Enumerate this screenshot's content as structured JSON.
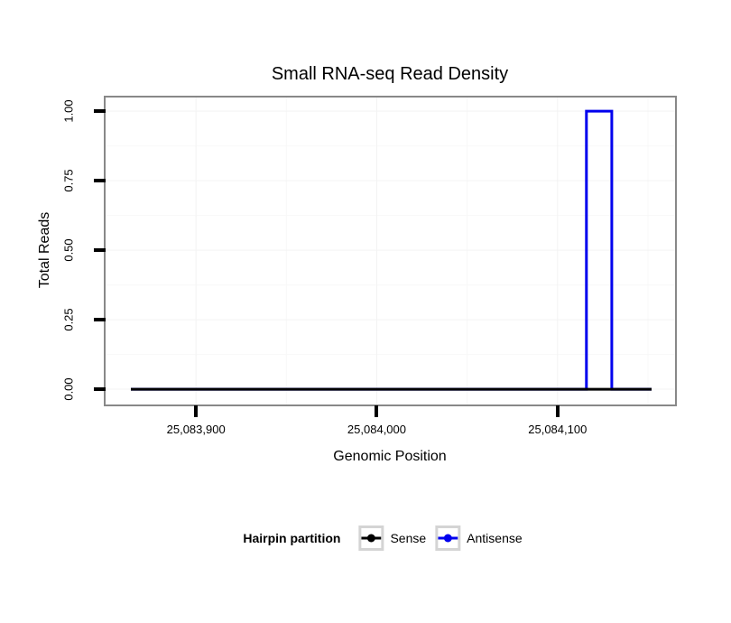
{
  "chart_data": {
    "type": "line",
    "title": "Small RNA-seq Read Density",
    "xlabel": "Genomic Position",
    "ylabel": "Total Reads",
    "legend_title": "Hairpin partition",
    "xlim": [
      25083850,
      25084165
    ],
    "ylim": [
      -0.055,
      1.049
    ],
    "x_ticks": [
      {
        "value": 25083900,
        "label": "25,083,900"
      },
      {
        "value": 25084000,
        "label": "25,084,000"
      },
      {
        "value": 25084100,
        "label": "25,084,100"
      }
    ],
    "y_ticks": [
      {
        "value": 0.0,
        "label": "0.00"
      },
      {
        "value": 0.25,
        "label": "0.25"
      },
      {
        "value": 0.5,
        "label": "0.50"
      },
      {
        "value": 0.75,
        "label": "0.75"
      },
      {
        "value": 1.0,
        "label": "1.00"
      }
    ],
    "grid": "on",
    "legend_position": "bottom",
    "series": [
      {
        "name": "Sense",
        "color": "#000000",
        "points": [
          [
            25083864,
            0
          ],
          [
            25084152,
            0
          ]
        ]
      },
      {
        "name": "Antisense",
        "color": "#0000EE",
        "points": [
          [
            25083864,
            0
          ],
          [
            25084116,
            0
          ],
          [
            25084116,
            1
          ],
          [
            25084130,
            1
          ],
          [
            25084130,
            0
          ],
          [
            25084152,
            0
          ]
        ]
      }
    ]
  },
  "colors": {
    "panel_border": "#888888",
    "tick": "#000000",
    "grid_major": "#f3f3f3",
    "grid_minor": "#f8f8f8",
    "legend_key_border": "#d4d4d4",
    "background": "#ffffff"
  }
}
